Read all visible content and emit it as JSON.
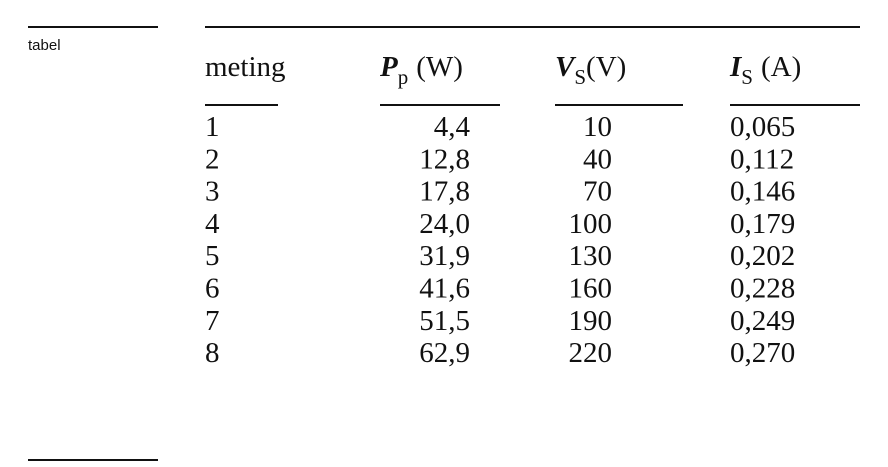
{
  "label": "tabel",
  "table": {
    "header": [
      {
        "text": "meting"
      },
      {
        "symbol": "P",
        "subscript": "p",
        "unit": "(W)"
      },
      {
        "symbol": "V",
        "subscript": "S",
        "unit": "(V)"
      },
      {
        "symbol": "I",
        "subscript": "S",
        "unit": "(A)"
      }
    ],
    "rows": [
      [
        "1",
        "4,4",
        "10",
        "0,065"
      ],
      [
        "2",
        "12,8",
        "40",
        "0,112"
      ],
      [
        "3",
        "17,8",
        "70",
        "0,146"
      ],
      [
        "4",
        "24,0",
        "100",
        "0,179"
      ],
      [
        "5",
        "31,9",
        "130",
        "0,202"
      ],
      [
        "6",
        "41,6",
        "160",
        "0,228"
      ],
      [
        "7",
        "51,5",
        "190",
        "0,249"
      ],
      [
        "8",
        "62,9",
        "220",
        "0,270"
      ]
    ]
  }
}
